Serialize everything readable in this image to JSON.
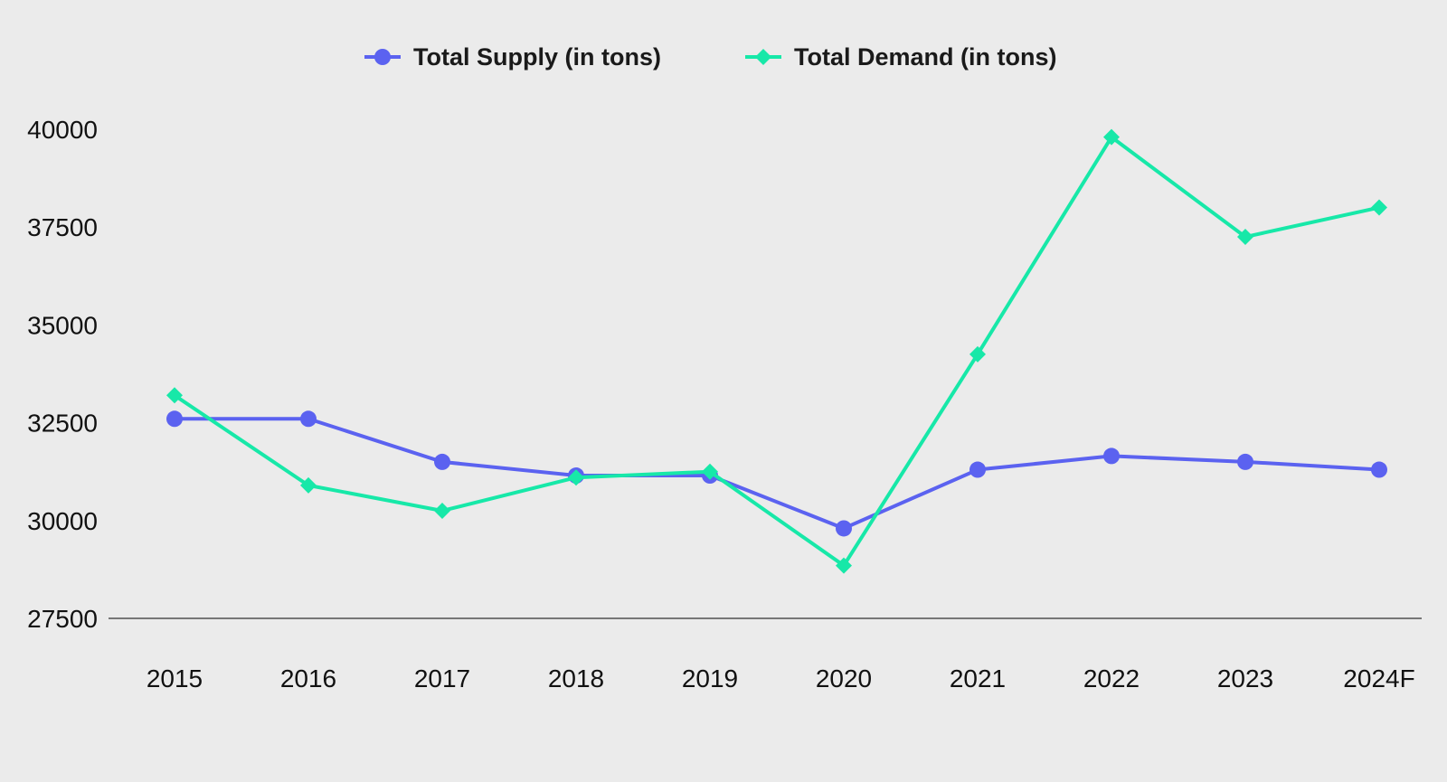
{
  "chart_data": {
    "type": "line",
    "title": "",
    "xlabel": "",
    "ylabel": "",
    "categories": [
      "2015",
      "2016",
      "2017",
      "2018",
      "2019",
      "2020",
      "2021",
      "2022",
      "2023",
      "2024F"
    ],
    "ylim": [
      27500,
      40000
    ],
    "yticks": [
      "27500",
      "30000",
      "32500",
      "35000",
      "37500",
      "40000"
    ],
    "grid": false,
    "legend_position": "top-center",
    "series": [
      {
        "name": "Total Supply (in tons)",
        "marker": "circle",
        "color": "#5b62f0",
        "values": [
          32600,
          32600,
          31500,
          31150,
          31150,
          29800,
          31300,
          31650,
          31500,
          31300
        ]
      },
      {
        "name": "Total Demand (in tons)",
        "marker": "diamond",
        "color": "#17e8a8",
        "values": [
          33200,
          30900,
          30250,
          31100,
          31250,
          28850,
          34250,
          39800,
          37250,
          38000
        ]
      }
    ]
  }
}
